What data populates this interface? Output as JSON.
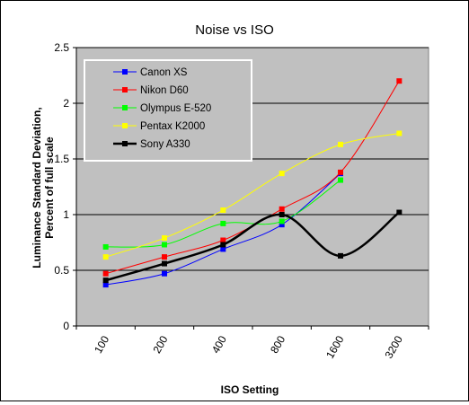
{
  "chart_data": {
    "type": "line",
    "title": "Noise vs ISO",
    "xlabel": "ISO Setting",
    "ylabel": [
      "Luminance Standard Deviation,",
      "Percent of full scale"
    ],
    "categories": [
      "100",
      "200",
      "400",
      "800",
      "1600",
      "3200"
    ],
    "ylim": [
      0,
      2.5
    ],
    "yticks": [
      "0",
      "0.5",
      "1",
      "1.5",
      "2",
      "2.5"
    ],
    "grid": true,
    "legend_position": "top-left inside plot",
    "plot_background": "#c0c0c0",
    "series": [
      {
        "name": "Canon XS",
        "color": "#0000ff",
        "values": [
          0.37,
          0.47,
          0.69,
          0.91,
          1.37,
          null
        ]
      },
      {
        "name": "Nikon D60",
        "color": "#ff0000",
        "values": [
          0.47,
          0.62,
          0.77,
          1.05,
          1.38,
          2.2
        ]
      },
      {
        "name": "Olympus E-520",
        "color": "#00ff00",
        "values": [
          0.71,
          0.73,
          0.92,
          0.94,
          1.31,
          null
        ]
      },
      {
        "name": "Pentax K2000",
        "color": "#ffff00",
        "values": [
          0.62,
          0.79,
          1.04,
          1.37,
          1.63,
          1.73
        ]
      },
      {
        "name": "Sony A330",
        "color": "#000000",
        "values": [
          0.41,
          0.56,
          0.73,
          1.0,
          0.63,
          1.02
        ],
        "thick": true
      }
    ]
  }
}
